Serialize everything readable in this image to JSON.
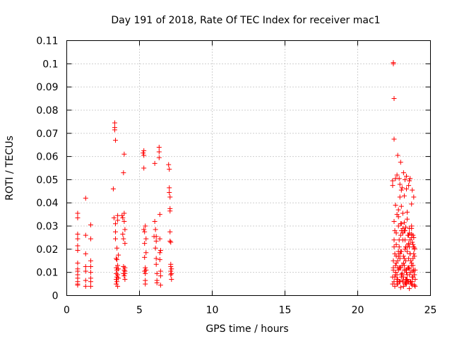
{
  "chart_data": {
    "type": "scatter",
    "title": "Day 191 of 2018, Rate Of TEC Index for receiver mac1",
    "xlabel": "GPS time / hours",
    "ylabel": "ROTI / TECUs",
    "xlim": [
      0,
      25
    ],
    "ylim": [
      0,
      0.11
    ],
    "xticks": [
      0,
      5,
      10,
      15,
      20,
      25
    ],
    "xtick_labels": [
      "0",
      "5",
      "10",
      "15",
      "20",
      "25"
    ],
    "yticks": [
      0,
      0.01,
      0.02,
      0.03,
      0.04,
      0.05,
      0.06,
      0.07,
      0.08,
      0.09,
      0.1,
      0.11
    ],
    "ytick_labels": [
      "0",
      "0.01",
      "0.02",
      "0.03",
      "0.04",
      "0.05",
      "0.06",
      "0.07",
      "0.08",
      "0.09",
      "0.1",
      "0.11"
    ],
    "grid": true,
    "marker": "+",
    "color": "#ff0000",
    "series": [
      {
        "name": "ROTI",
        "x": [
          0.75,
          0.75,
          0.75,
          0.75,
          0.75,
          0.75,
          0.75,
          0.75,
          0.75,
          0.75,
          0.75,
          0.75,
          0.75,
          0.75,
          1.3,
          1.3,
          1.3,
          1.3,
          1.3,
          1.3,
          1.3,
          1.65,
          1.65,
          1.65,
          1.65,
          1.65,
          1.65,
          1.65,
          1.65,
          3.2,
          3.25,
          3.3,
          3.3,
          3.3,
          3.35,
          3.35,
          3.35,
          3.35,
          3.4,
          3.4,
          3.4,
          3.4,
          3.4,
          3.45,
          3.45,
          3.45,
          3.45,
          3.45,
          3.5,
          3.5,
          3.5,
          3.5,
          3.5,
          3.55,
          3.55,
          3.55,
          3.8,
          3.85,
          3.85,
          3.9,
          3.9,
          3.9,
          3.9,
          3.95,
          3.95,
          3.95,
          3.95,
          3.95,
          4.0,
          4.0,
          4.0,
          4.0,
          4.0,
          4.0,
          5.25,
          5.3,
          5.3,
          5.3,
          5.3,
          5.35,
          5.35,
          5.35,
          5.35,
          5.4,
          5.4,
          5.4,
          5.4,
          5.4,
          5.45,
          5.45,
          5.45,
          6.0,
          6.05,
          6.05,
          6.1,
          6.1,
          6.15,
          6.15,
          6.15,
          6.15,
          6.2,
          6.2,
          6.2,
          6.35,
          6.35,
          6.35,
          6.4,
          6.4,
          6.4,
          6.4,
          6.45,
          6.45,
          6.45,
          6.45,
          7.0,
          7.05,
          7.05,
          7.05,
          7.1,
          7.1,
          7.1,
          7.1,
          7.1,
          7.15,
          7.15,
          7.15,
          7.15,
          7.15,
          7.2,
          7.2,
          7.2,
          22.45,
          22.45,
          22.5,
          22.5,
          22.4,
          22.4,
          22.4,
          22.45,
          22.5,
          22.55,
          22.6,
          22.65,
          22.7,
          22.75,
          22.8,
          22.85,
          22.9,
          22.95,
          23.0,
          23.05,
          23.1,
          23.15,
          23.2,
          23.25,
          23.3,
          23.35,
          23.4,
          23.45,
          23.5,
          23.55,
          23.6,
          23.65,
          23.7,
          23.75,
          23.8,
          23.85,
          23.9,
          23.95,
          22.45,
          22.5,
          22.6,
          22.7,
          22.8,
          22.9,
          23.0,
          23.1,
          23.2,
          23.3,
          23.4,
          23.5,
          23.6,
          23.7,
          23.8,
          23.9,
          22.4,
          22.55,
          22.65,
          22.75,
          22.85,
          22.95,
          23.05,
          23.15,
          23.25,
          23.35,
          23.45,
          23.55,
          23.65,
          23.75,
          23.85,
          23.95,
          22.5,
          22.6,
          22.7,
          22.8,
          22.9,
          23.0,
          23.1,
          23.2,
          23.3,
          23.4,
          23.5,
          23.6,
          23.7,
          23.8,
          23.9,
          22.45,
          22.55,
          22.65,
          22.75,
          22.85,
          22.95,
          23.05,
          23.15,
          23.25,
          23.35,
          23.45,
          23.55,
          23.65,
          23.75,
          23.85,
          22.5,
          22.7,
          22.9,
          23.1,
          23.3,
          23.5,
          23.7,
          23.9,
          22.6,
          22.8,
          23.0,
          23.2,
          23.4,
          23.6,
          23.8,
          22.55,
          22.75,
          22.95,
          23.15,
          23.35,
          23.55,
          23.75,
          23.95,
          22.6,
          22.7,
          22.85,
          22.9,
          23.0,
          23.05,
          23.2,
          23.25,
          23.35,
          23.5,
          23.6,
          23.7,
          23.85,
          22.65,
          22.8,
          22.95,
          23.1,
          23.25,
          23.4,
          23.55,
          23.7,
          23.85,
          22.9,
          23.0,
          23.1,
          23.2,
          23.3,
          23.5,
          23.7,
          23.9,
          22.75,
          22.95,
          23.15,
          23.35,
          23.55,
          23.75,
          22.8,
          23.0,
          23.2,
          23.4,
          23.6,
          23.8,
          22.6,
          22.85,
          23.05,
          23.3,
          23.55,
          23.8,
          22.7,
          22.9,
          23.1,
          23.3,
          23.5,
          23.7,
          23.9
        ],
        "y": [
          0.0355,
          0.0335,
          0.0265,
          0.0245,
          0.0215,
          0.0195,
          0.014,
          0.0115,
          0.0105,
          0.009,
          0.0075,
          0.006,
          0.005,
          0.0045,
          0.042,
          0.026,
          0.018,
          0.0125,
          0.0105,
          0.0065,
          0.004,
          0.0305,
          0.0245,
          0.015,
          0.0125,
          0.01,
          0.0075,
          0.006,
          0.004,
          0.046,
          0.0335,
          0.0745,
          0.0725,
          0.0715,
          0.067,
          0.031,
          0.0275,
          0.0245,
          0.016,
          0.012,
          0.0095,
          0.007,
          0.005,
          0.0205,
          0.0155,
          0.011,
          0.008,
          0.006,
          0.0345,
          0.0325,
          0.013,
          0.009,
          0.004,
          0.0175,
          0.0115,
          0.0075,
          0.0345,
          0.0335,
          0.0265,
          0.053,
          0.0245,
          0.0125,
          0.0095,
          0.061,
          0.0355,
          0.032,
          0.011,
          0.0085,
          0.0285,
          0.0225,
          0.012,
          0.0105,
          0.0095,
          0.007,
          0.0615,
          0.0625,
          0.0605,
          0.055,
          0.0285,
          0.0275,
          0.0225,
          0.0165,
          0.0105,
          0.03,
          0.012,
          0.0095,
          0.0065,
          0.005,
          0.0245,
          0.0185,
          0.011,
          0.0255,
          0.057,
          0.032,
          0.0285,
          0.0205,
          0.0255,
          0.0235,
          0.016,
          0.0135,
          0.0095,
          0.0065,
          0.0055,
          0.064,
          0.062,
          0.0595,
          0.035,
          0.0245,
          0.0185,
          0.0155,
          0.0195,
          0.0105,
          0.0085,
          0.0045,
          0.0565,
          0.0545,
          0.0465,
          0.0445,
          0.0425,
          0.0375,
          0.0365,
          0.0275,
          0.0235,
          0.023,
          0.0135,
          0.0125,
          0.0105,
          0.009,
          0.0115,
          0.0095,
          0.007,
          0.1005,
          0.1,
          0.085,
          0.0675,
          0.0495,
          0.0475,
          0.008,
          0.012,
          0.006,
          0.018,
          0.009,
          0.022,
          0.007,
          0.015,
          0.011,
          0.024,
          0.006,
          0.019,
          0.009,
          0.013,
          0.027,
          0.008,
          0.016,
          0.005,
          0.021,
          0.011,
          0.007,
          0.026,
          0.012,
          0.009,
          0.018,
          0.006,
          0.014,
          0.023,
          0.008,
          0.011,
          0.017,
          0.007,
          0.015,
          0.024,
          0.01,
          0.007,
          0.019,
          0.012,
          0.028,
          0.006,
          0.011,
          0.021,
          0.009,
          0.016,
          0.006,
          0.025,
          0.013,
          0.009,
          0.005,
          0.008,
          0.017,
          0.012,
          0.006,
          0.026,
          0.009,
          0.014,
          0.02,
          0.007,
          0.012,
          0.029,
          0.01,
          0.006,
          0.018,
          0.011,
          0.021,
          0.013,
          0.009,
          0.03,
          0.016,
          0.008,
          0.024,
          0.011,
          0.007,
          0.019,
          0.026,
          0.006,
          0.013,
          0.022,
          0.009,
          0.011,
          0.028,
          0.014,
          0.007,
          0.021,
          0.012,
          0.009,
          0.017,
          0.028,
          0.01,
          0.006,
          0.021,
          0.015,
          0.008,
          0.025,
          0.032,
          0.035,
          0.018,
          0.027,
          0.015,
          0.022,
          0.029,
          0.02,
          0.039,
          0.037,
          0.031,
          0.028,
          0.033,
          0.024,
          0.026,
          0.004,
          0.005,
          0.0035,
          0.004,
          0.005,
          0.003,
          0.0045,
          0.004,
          0.0505,
          0.052,
          0.0505,
          0.048,
          0.0455,
          0.0465,
          0.043,
          0.05,
          0.046,
          0.0475,
          0.0505,
          0.0395,
          0.0425,
          0.027,
          0.034,
          0.031,
          0.029,
          0.024,
          0.036,
          0.027,
          0.03,
          0.021,
          0.0425,
          0.0385,
          0.0355,
          0.0315,
          0.0295,
          0.0225,
          0.0265,
          0.0205,
          0.0605,
          0.0575,
          0.053,
          0.0515,
          0.0495,
          0.0455,
          0.017,
          0.019,
          0.013,
          0.021,
          0.018,
          0.016,
          0.01,
          0.012,
          0.0095,
          0.011,
          0.0115,
          0.0105,
          0.005,
          0.006,
          0.0065,
          0.0055,
          0.006,
          0.005,
          0.0045
        ]
      }
    ]
  }
}
